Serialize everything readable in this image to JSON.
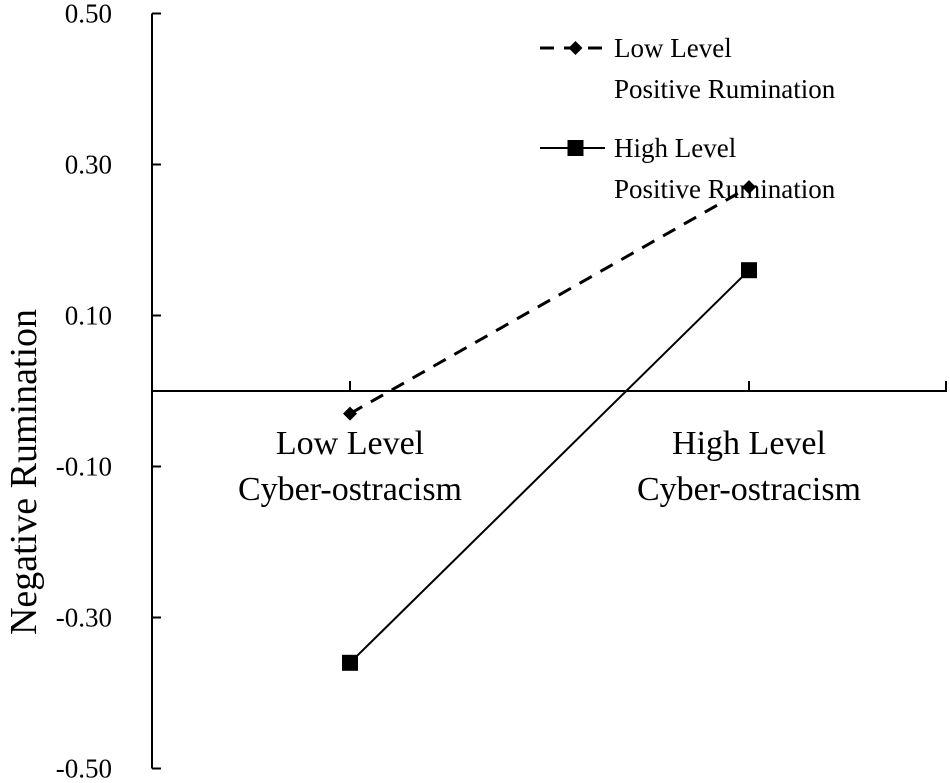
{
  "chart_data": {
    "type": "line",
    "ylabel": "Negative Rumination",
    "xlabel": "",
    "ylim": [
      -0.5,
      0.5
    ],
    "yticks": [
      "0.50",
      "0.30",
      "0.10",
      "-0.10",
      "-0.30",
      "-0.50"
    ],
    "ytick_values": [
      0.5,
      0.3,
      0.1,
      -0.1,
      -0.3,
      -0.5
    ],
    "categories": [
      [
        "Low Level",
        "Cyber-ostracism"
      ],
      [
        "High Level",
        "Cyber-ostracism"
      ]
    ],
    "series": [
      {
        "name": [
          "Low Level",
          "Positive Rumination"
        ],
        "values": [
          -0.03,
          0.27
        ],
        "line_style": "dashed",
        "marker": "diamond",
        "color": "#000000"
      },
      {
        "name": [
          "High Level",
          "Positive Rumination"
        ],
        "values": [
          -0.36,
          0.16
        ],
        "line_style": "solid",
        "marker": "square",
        "color": "#000000"
      }
    ],
    "legend_position": "top-right",
    "grid": false
  }
}
